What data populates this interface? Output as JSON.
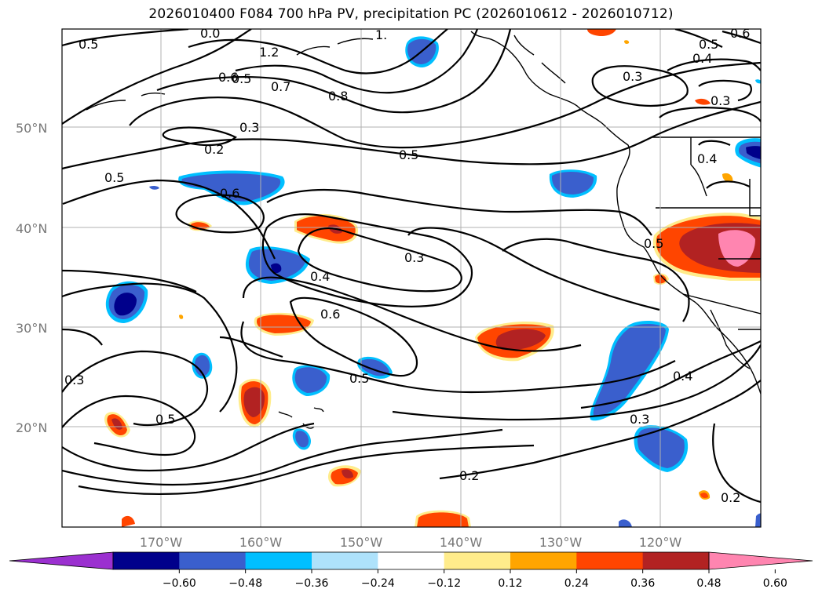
{
  "title": "2026010400 F084 700 hPa PV, precipitation PC (2026010612 - 2026010712)",
  "map": {
    "lat_labels": [
      "50°N",
      "40°N",
      "30°N",
      "20°N"
    ],
    "lon_labels": [
      "170°W",
      "160°W",
      "150°W",
      "140°W",
      "130°W",
      "120°W"
    ],
    "contour_labels": [
      "0.5",
      "0.0",
      "1.2",
      "1.",
      "0.6",
      "0.5",
      "0.7",
      "0.8",
      "0.3",
      "0.2",
      "0.5",
      "0.5",
      "0.6",
      "0.3",
      "0.4",
      "0.6",
      "0.5",
      "0.3",
      "0.5",
      "0.2",
      "0.3",
      "0.4",
      "0.2",
      "0.5",
      "0.4",
      "0.3",
      "0.5",
      "0.4",
      "0.6",
      "0.3"
    ]
  },
  "colorbar": {
    "ticks": [
      "−0.60",
      "−0.48",
      "−0.36",
      "−0.24",
      "−0.12",
      "0.12",
      "0.24",
      "0.36",
      "0.48",
      "0.60"
    ],
    "colors": [
      "#9b30d0",
      "#00008b",
      "#3a5fcd",
      "#00bfff",
      "#aee2fb",
      "#ffffff",
      "#ffec8b",
      "#ffa500",
      "#ff4500",
      "#b22222",
      "#ff85b0"
    ]
  }
}
